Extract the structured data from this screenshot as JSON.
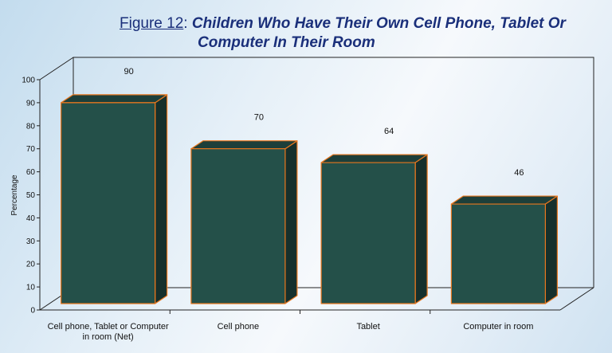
{
  "chart_data": {
    "type": "bar",
    "title_prefix": "Figure 12",
    "title_sep": ": ",
    "title_line1": "Children Who Have Their Own Cell Phone, Tablet Or",
    "title_line2": "Computer In Their Room",
    "ylabel": "Percentage",
    "xlabel": "",
    "ylim": [
      0,
      100
    ],
    "yticks": [
      0,
      10,
      20,
      30,
      40,
      50,
      60,
      70,
      80,
      90,
      100
    ],
    "categories": [
      [
        "Cell phone, Tablet or Computer",
        "in room (Net)"
      ],
      [
        "Cell phone"
      ],
      [
        "Tablet"
      ],
      [
        "Computer in room"
      ]
    ],
    "values": [
      90,
      70,
      64,
      46
    ],
    "data_labels": [
      "90",
      "70",
      "64",
      "46"
    ],
    "grid": false,
    "legend": "none"
  },
  "colors": {
    "bar_front": "#245049",
    "bar_side": "#16302c",
    "bar_top": "#1d3f3a",
    "bar_edge": "#e8771e",
    "axis": "#222222",
    "title": "#1a2f7a"
  }
}
